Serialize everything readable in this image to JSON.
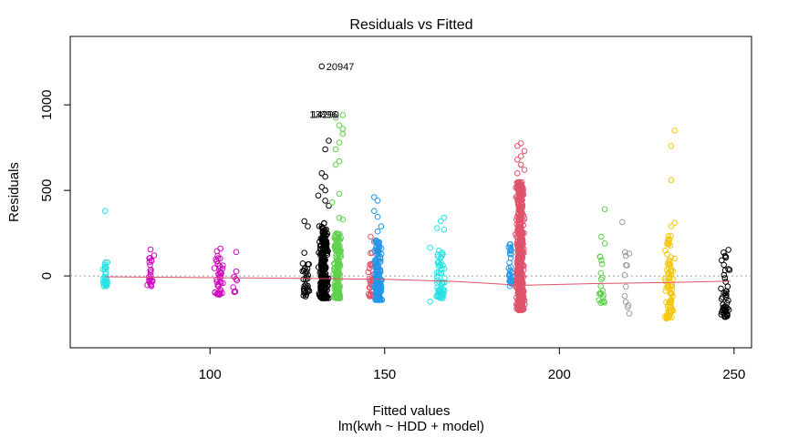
{
  "chart_data": {
    "type": "scatter",
    "title": "Residuals vs Fitted",
    "xlabel": "Fitted values",
    "xsublabel": "lm(kwh ~ HDD + model)",
    "ylabel": "Residuals",
    "xlim": [
      60,
      255
    ],
    "ylim": [
      -420,
      1400
    ],
    "xticks": [
      100,
      150,
      200,
      250
    ],
    "yticks": [
      0,
      500,
      1000
    ],
    "grid": false,
    "zero_line": true,
    "colors": {
      "black": "#000000",
      "red": "#df536b",
      "green": "#61d04f",
      "blue": "#2297e6",
      "cyan": "#28e2e5",
      "magenta": "#cd0bbc",
      "yellow": "#f5c710",
      "gray": "#9e9e9e"
    },
    "groups": [
      {
        "color": "cyan",
        "x": 70,
        "xspread": 1.2,
        "ymin": -60,
        "ymax": 80,
        "n": 30,
        "outliers": [
          [
            70,
            380
          ]
        ]
      },
      {
        "color": "magenta",
        "x": 83,
        "xspread": 1.2,
        "ymin": -60,
        "ymax": 110,
        "n": 22,
        "outliers": [
          [
            83,
            155
          ],
          [
            84,
            120
          ]
        ]
      },
      {
        "color": "magenta",
        "x": 102.5,
        "xspread": 1.8,
        "ymin": -110,
        "ymax": 120,
        "n": 40,
        "outliers": [
          [
            103,
            160
          ],
          [
            102,
            145
          ]
        ]
      },
      {
        "color": "magenta",
        "x": 107.5,
        "xspread": 1.4,
        "ymin": -95,
        "ymax": 40,
        "n": 8,
        "outliers": [
          [
            107.5,
            140
          ]
        ]
      },
      {
        "color": "black",
        "x": 127.5,
        "xspread": 1.5,
        "ymin": -120,
        "ymax": 80,
        "n": 30,
        "outliers": [
          [
            127,
            320
          ],
          [
            128,
            290
          ],
          [
            127,
            135
          ]
        ]
      },
      {
        "color": "black",
        "x": 132.5,
        "xspread": 1.6,
        "ymin": -130,
        "ymax": 310,
        "n": 240,
        "outliers": [
          [
            132,
            1225
          ],
          [
            133,
            740
          ],
          [
            134,
            790
          ],
          [
            132,
            600
          ],
          [
            133,
            580
          ],
          [
            132,
            520
          ],
          [
            133,
            500
          ],
          [
            131,
            470
          ],
          [
            133,
            440
          ],
          [
            134,
            410
          ]
        ]
      },
      {
        "color": "green",
        "x": 136.5,
        "xspread": 1.4,
        "ymin": -130,
        "ymax": 250,
        "n": 180,
        "outliers": [
          [
            138,
            940
          ],
          [
            136,
            925
          ],
          [
            137,
            880
          ],
          [
            138,
            860
          ],
          [
            138,
            830
          ],
          [
            137,
            780
          ],
          [
            136,
            740
          ],
          [
            137,
            670
          ],
          [
            136,
            650
          ],
          [
            137,
            480
          ],
          [
            135,
            430
          ],
          [
            137,
            340
          ],
          [
            138,
            330
          ]
        ]
      },
      {
        "color": "red",
        "x": 146,
        "xspread": 1.2,
        "ymin": -120,
        "ymax": 150,
        "n": 30,
        "outliers": [
          [
            146,
            230
          ],
          [
            147,
            200
          ]
        ]
      },
      {
        "color": "blue",
        "x": 148,
        "xspread": 1.5,
        "ymin": -140,
        "ymax": 210,
        "n": 160,
        "outliers": [
          [
            147,
            460
          ],
          [
            148,
            440
          ],
          [
            147,
            380
          ],
          [
            148,
            345
          ],
          [
            149,
            290
          ],
          [
            148,
            260
          ]
        ]
      },
      {
        "color": "cyan",
        "x": 166,
        "xspread": 1.8,
        "ymin": -130,
        "ymax": 150,
        "n": 60,
        "outliers": [
          [
            167,
            340
          ],
          [
            166,
            320
          ],
          [
            165,
            280
          ],
          [
            167,
            270
          ],
          [
            163,
            165
          ],
          [
            163,
            -150
          ]
        ]
      },
      {
        "color": "blue",
        "x": 186,
        "xspread": 0.8,
        "ymin": -60,
        "ymax": 200,
        "n": 30,
        "outliers": []
      },
      {
        "color": "red",
        "x": 188.8,
        "xspread": 1.5,
        "ymin": -200,
        "ymax": 550,
        "n": 520,
        "outliers": [
          [
            189,
            775
          ],
          [
            188,
            760
          ],
          [
            190,
            730
          ],
          [
            189,
            700
          ],
          [
            188,
            680
          ],
          [
            189,
            650
          ],
          [
            190,
            620
          ],
          [
            188,
            600
          ]
        ]
      },
      {
        "color": "green",
        "x": 212,
        "xspread": 1.5,
        "ymin": -160,
        "ymax": 160,
        "n": 20,
        "outliers": [
          [
            213,
            390
          ],
          [
            212,
            230
          ],
          [
            213,
            190
          ]
        ]
      },
      {
        "color": "gray",
        "x": 219.5,
        "xspread": 1.8,
        "ymin": -220,
        "ymax": 140,
        "n": 10,
        "outliers": [
          [
            218,
            315
          ],
          [
            220,
            130
          ],
          [
            220,
            -220
          ]
        ]
      },
      {
        "color": "yellow",
        "x": 231.5,
        "xspread": 1.6,
        "ymin": -250,
        "ymax": 240,
        "n": 90,
        "outliers": [
          [
            233,
            850
          ],
          [
            232,
            760
          ],
          [
            232,
            560
          ],
          [
            233,
            310
          ],
          [
            232,
            290
          ]
        ]
      },
      {
        "color": "black",
        "x": 247.5,
        "xspread": 1.6,
        "ymin": -240,
        "ymax": 170,
        "n": 50,
        "outliers": []
      }
    ],
    "smooth_line": {
      "color": "red",
      "points": [
        [
          70,
          -5
        ],
        [
          100,
          -10
        ],
        [
          130,
          -15
        ],
        [
          150,
          -20
        ],
        [
          170,
          -32
        ],
        [
          189,
          -55
        ],
        [
          210,
          -45
        ],
        [
          232,
          -38
        ],
        [
          249,
          -30
        ]
      ]
    },
    "labels": [
      {
        "text": "20947",
        "x": 132,
        "y": 1225
      },
      {
        "text": "13896",
        "x": 134,
        "y": 945
      },
      {
        "text": "14290",
        "x": 134.5,
        "y": 945
      }
    ]
  }
}
